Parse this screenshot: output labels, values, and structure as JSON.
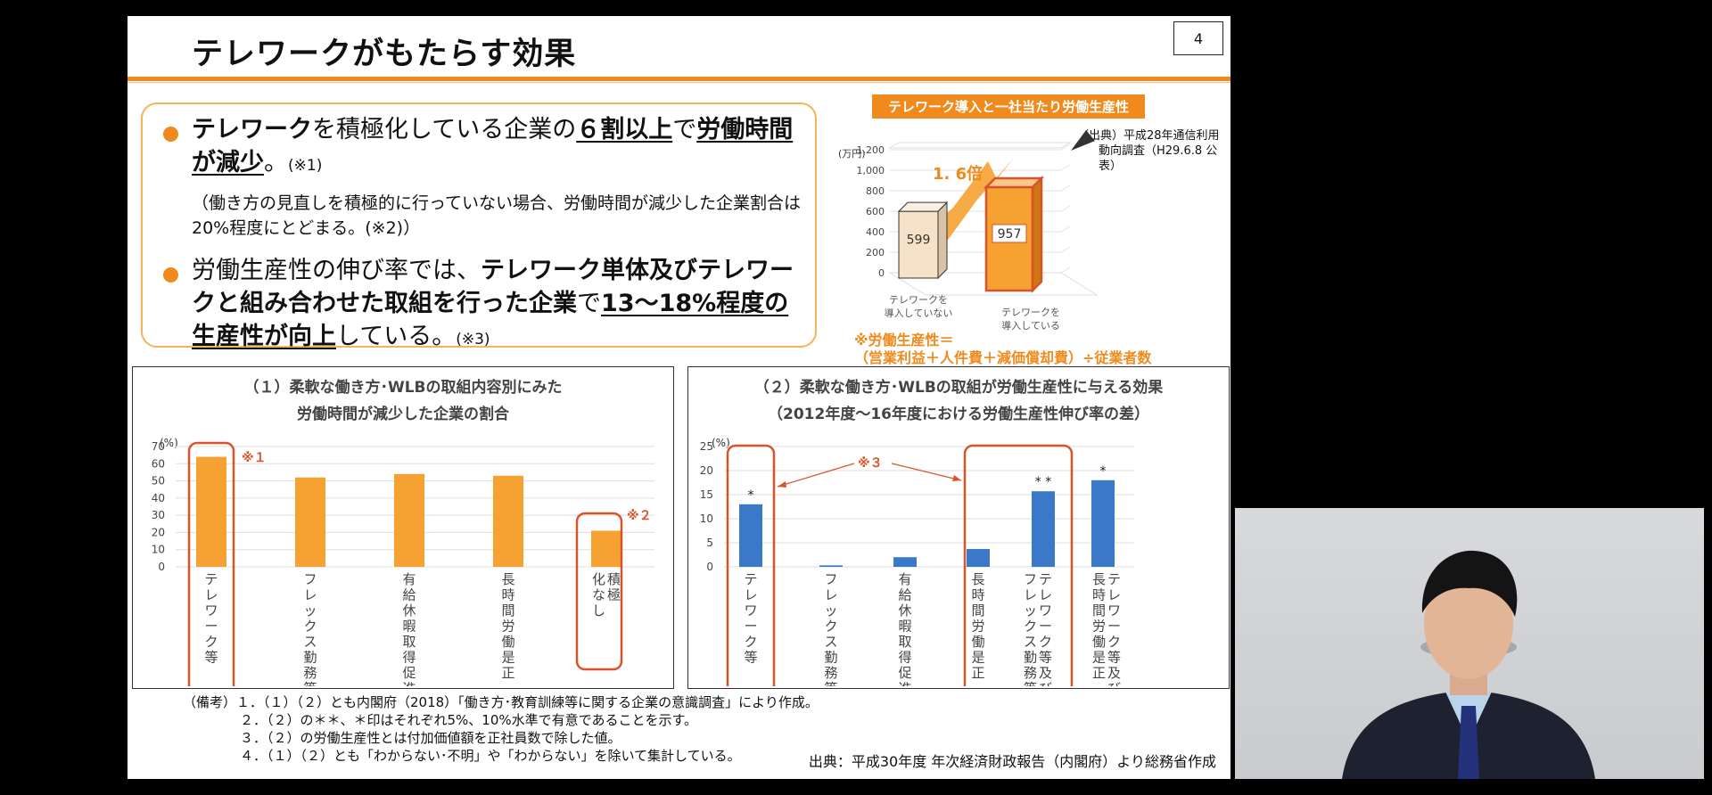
{
  "slide": {
    "title": "テレワークがもたらす効果",
    "page_number": "4"
  },
  "bullets": {
    "b1_parts": [
      "テレワーク",
      "を積極化している企業の",
      "６割以上",
      "で",
      "労働時間が減少",
      "。",
      "(※1)"
    ],
    "paren": "（働き方の見直しを積極的に行っていない場合、労働時間が減少した企業割合は20%程度にとどまる。(※2)）",
    "b2_parts": [
      "労働生産性の伸び率では、",
      "テレワーク単体及びテレワークと組み合わせた取組を行った企業",
      "で",
      "13～18%程度の生産性が向上",
      "している。",
      "(※3)"
    ]
  },
  "right_chart": {
    "title": "テレワーク導入と一社当たり労働生産性",
    "unit": "(万円)",
    "source_line1": "（出典）平成28年通信利用",
    "source_line2": "動向調査（H29.6.8 公表）",
    "multiplier": "1. 6倍",
    "foot_line1": "※労働生産性＝",
    "foot_line2": "（営業利益＋人件費＋減価償却費）÷従業者数",
    "cat1_line1": "テレワークを",
    "cat1_line2": "導入していない",
    "cat2_line1": "テレワークを",
    "cat2_line2": "導入している",
    "ytick_labels": [
      "1,200",
      "1,000",
      "800",
      "600",
      "400",
      "200",
      "0"
    ]
  },
  "panel1": {
    "title_line1": "（１）柔軟な働き方･WLBの取組内容別にみた",
    "title_line2": "労働時間が減少した企業の割合",
    "unit": "(%)",
    "mark1": "※１",
    "mark2": "※２",
    "ytick_labels": [
      "70",
      "60",
      "50",
      "40",
      "30",
      "20",
      "10",
      "0"
    ],
    "cat_labels": [
      "テレワーク等",
      "フレックス勤務等",
      "有給休暇取得促進",
      "長時間労働是正",
      "積極化なし"
    ]
  },
  "panel2": {
    "title_line1": "（２）柔軟な働き方･WLBの取組が労働生産性に与える効果",
    "title_line2": "（2012年度～16年度における労働生産性伸び率の差）",
    "unit": "(%)",
    "mark3": "※３",
    "ytick_labels": [
      "25",
      "20",
      "15",
      "10",
      "5",
      "0"
    ],
    "cat_labels": [
      "テレワーク等",
      "フレックス勤務等",
      "有給休暇取得促進",
      "長時間労働是正",
      "テレワーク等及びフレックス勤務等",
      "テレワーク等及び長時間労働是正"
    ],
    "sig_labels": [
      "*",
      "",
      "",
      "",
      "* *",
      "*"
    ]
  },
  "notes": {
    "lines": [
      "（備考）１．（１）（２）とも内閣府（2018）「働き方･教育訓練等に関する企業の意識調査」により作成。",
      "２．（２）の＊＊、＊印はそれぞれ5%、10%水準で有意であることを示す。",
      "３．（２）の労働生産性とは付加価値額を正社員数で除した値。",
      "４．（１）（２）とも「わからない･不明」や「わからない」を除いて集計している。"
    ],
    "source": "出典：平成30年度 年次経済財政報告（内閣府）より総務省作成"
  },
  "colors": {
    "accent": "#f08a1c",
    "bar_orange": "#f5a233",
    "bar_blue": "#3a78c8",
    "highlight_red": "#d9532a"
  },
  "chart_data": [
    {
      "type": "bar",
      "title": "テレワーク導入と一社当たり労働生産性",
      "categories": [
        "テレワークを導入していない",
        "テレワークを導入している"
      ],
      "values": [
        599,
        957
      ],
      "ylabel": "(万円)",
      "ylim": [
        0,
        1200
      ]
    },
    {
      "type": "bar",
      "title": "（１）柔軟な働き方･WLBの取組内容別にみた労働時間が減少した企業の割合",
      "categories": [
        "テレワーク等",
        "フレックス勤務等",
        "有給休暇取得促進",
        "長時間労働是正",
        "積極化なし"
      ],
      "values": [
        64,
        52,
        54,
        53,
        21
      ],
      "ylabel": "(%)",
      "ylim": [
        0,
        70
      ]
    },
    {
      "type": "bar",
      "title": "（２）柔軟な働き方･WLBの取組が労働生産性に与える効果",
      "categories": [
        "テレワーク等",
        "フレックス勤務等",
        "有給休暇取得促進",
        "長時間労働是正",
        "テレワーク等及びフレックス勤務等",
        "テレワーク等及び長時間労働是正"
      ],
      "values": [
        13,
        0.3,
        2,
        3.7,
        15.7,
        18
      ],
      "ylabel": "(%)",
      "ylim": [
        0,
        25
      ]
    }
  ]
}
